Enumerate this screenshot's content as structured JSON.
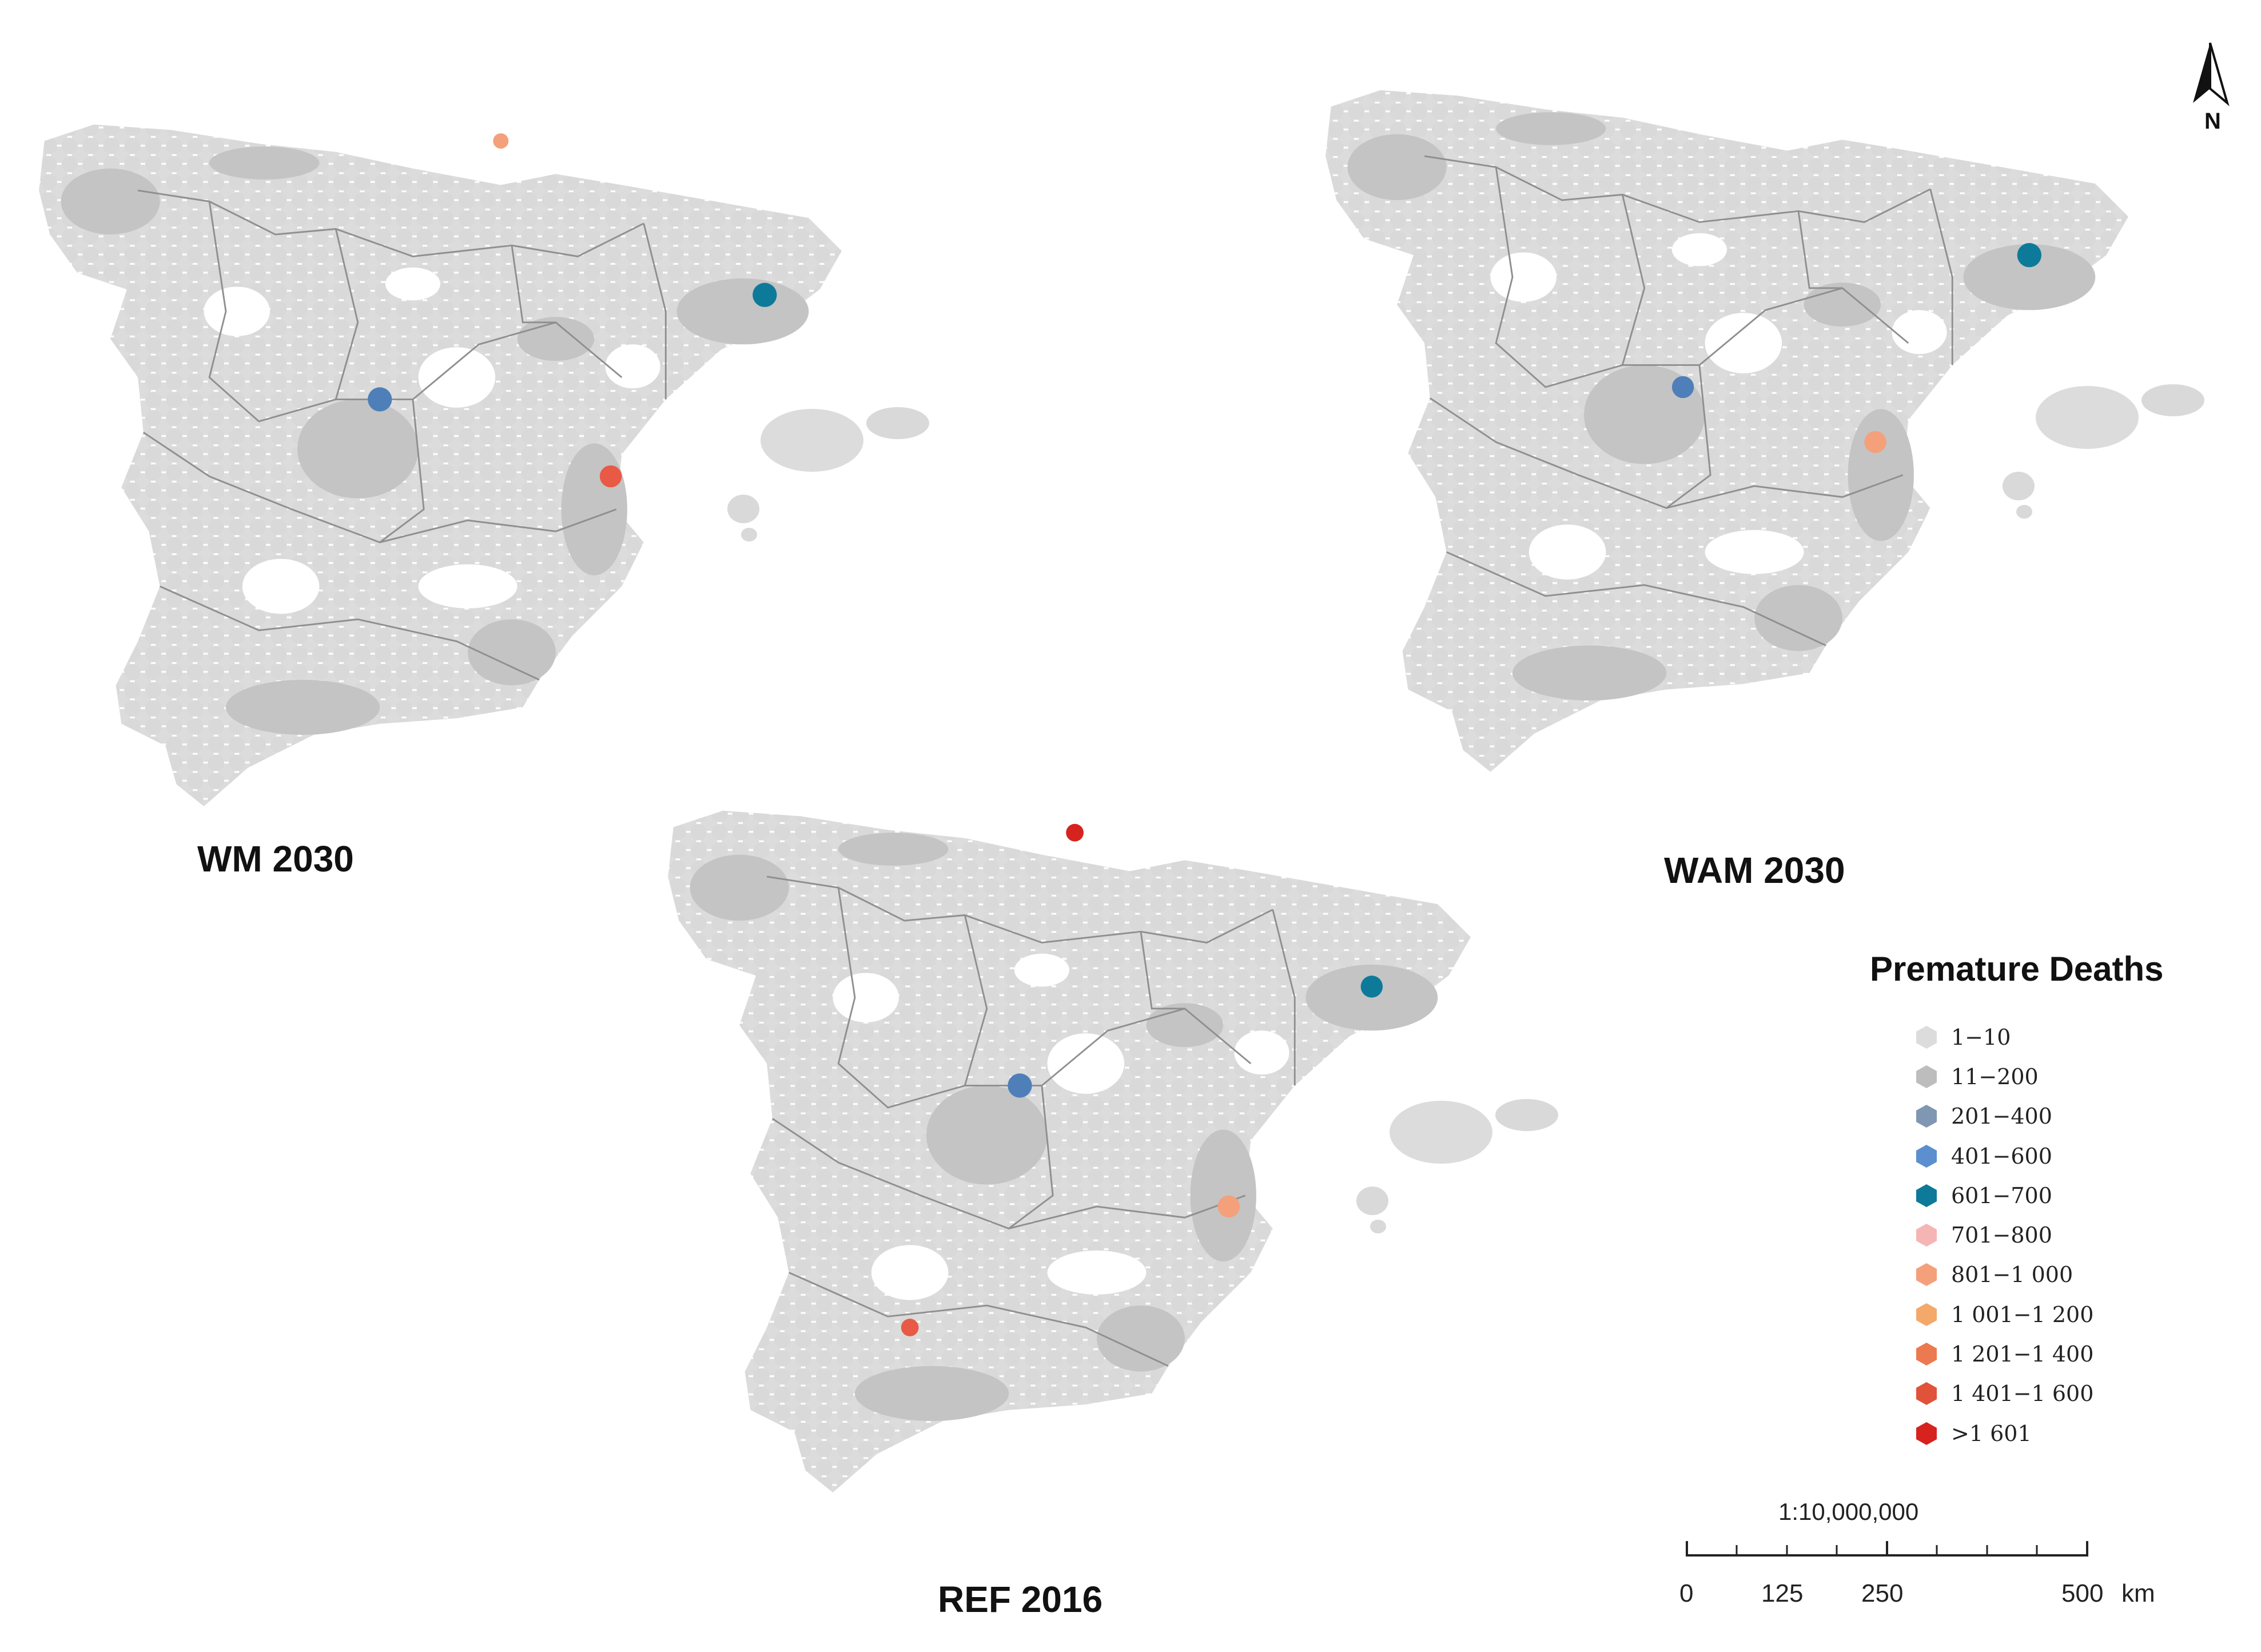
{
  "maps": {
    "wm": {
      "label": "WM 2030",
      "hotspots": [
        "#4f7fb8",
        "#0d7a9a",
        "#e85a45",
        "#f4a07a"
      ]
    },
    "wam": {
      "label": "WAM 2030",
      "hotspots": [
        "#4f7fb8",
        "#0d7a9a",
        "#f4a07a"
      ]
    },
    "ref": {
      "label": "REF 2016",
      "hotspots": [
        "#4f7fb8",
        "#0d7a9a",
        "#e85a45",
        "#d6231e",
        "#f4a07a"
      ]
    }
  },
  "legend": {
    "title": "Premature Deaths",
    "items": [
      {
        "label": "1−10",
        "color": "#dcdcdc"
      },
      {
        "label": "11−200",
        "color": "#bdbdbd"
      },
      {
        "label": "201−400",
        "color": "#7f97b2"
      },
      {
        "label": "401−600",
        "color": "#5b8fcf"
      },
      {
        "label": "601−700",
        "color": "#0d7a9a"
      },
      {
        "label": "701−800",
        "color": "#f6b5b5"
      },
      {
        "label": "801−1 000",
        "color": "#f4a07a"
      },
      {
        "label": "1 001−1 200",
        "color": "#f4a86a"
      },
      {
        "label": "1 201−1 400",
        "color": "#ec7a50"
      },
      {
        "label": "1 401−1 600",
        "color": "#e0523a"
      },
      {
        "label": ">1 601",
        "color": "#d6231e"
      }
    ]
  },
  "north_arrow": {
    "label": "N"
  },
  "scale": {
    "ratio": "1:10,000,000",
    "ticks": [
      "0",
      "125",
      "250",
      "500"
    ],
    "unit": "km"
  }
}
